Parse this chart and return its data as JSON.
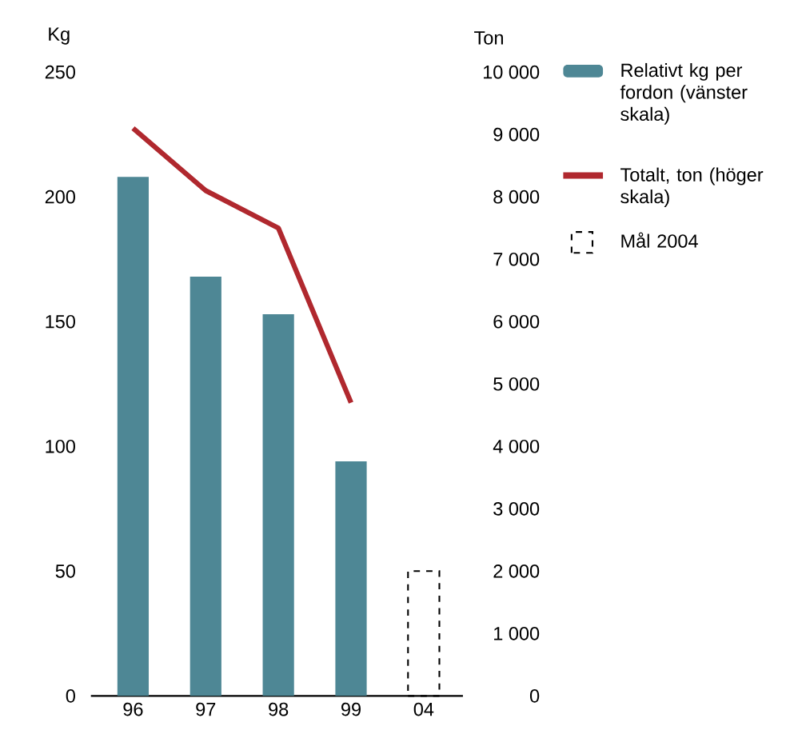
{
  "chart_data": {
    "type": "bar",
    "ylabel": "Kg",
    "y2label": "Ton",
    "categories": [
      "96",
      "97",
      "98",
      "99",
      "04"
    ],
    "series": [
      {
        "name": "Relativt kg per fordon (vänster skala)",
        "color": "#4e8795",
        "values": [
          208,
          168,
          153,
          94,
          null
        ]
      },
      {
        "name": "Totalt, ton (höger skala)",
        "type": "line",
        "axis": "y2",
        "color": "#b0282e",
        "values": [
          9100,
          8100,
          7500,
          4700,
          null
        ]
      },
      {
        "name": "Mål 2004",
        "color": "#000000",
        "line_style": "dashed",
        "values": [
          null,
          null,
          null,
          null,
          50
        ]
      }
    ],
    "ylim": [
      0,
      250
    ],
    "yticks": [
      0,
      50,
      100,
      150,
      200,
      250
    ],
    "y2lim": [
      0,
      10000
    ],
    "y2ticks": [
      {
        "value": 0,
        "label": "0"
      },
      {
        "value": 1000,
        "label": "1 000"
      },
      {
        "value": 2000,
        "label": "2 000"
      },
      {
        "value": 3000,
        "label": "3 000"
      },
      {
        "value": 4000,
        "label": "4 000"
      },
      {
        "value": 5000,
        "label": "5 000"
      },
      {
        "value": 6000,
        "label": "6 000"
      },
      {
        "value": 7000,
        "label": "7 000"
      },
      {
        "value": 8000,
        "label": "8 000"
      },
      {
        "value": 9000,
        "label": "9 000"
      },
      {
        "value": 10000,
        "label": "10 000"
      }
    ],
    "grid": false,
    "legend": "right"
  }
}
